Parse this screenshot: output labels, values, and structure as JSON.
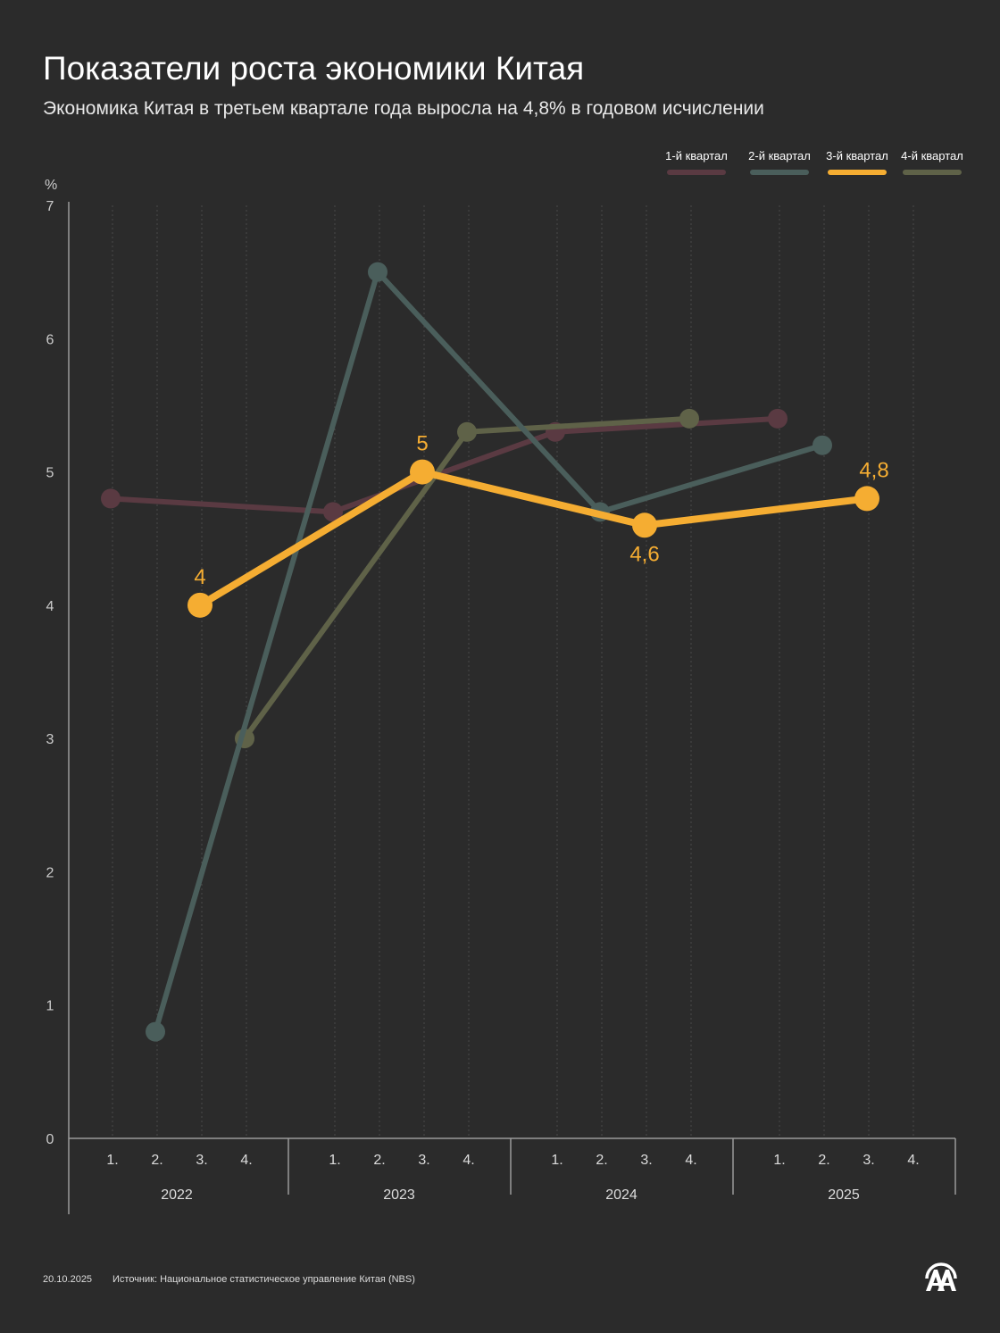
{
  "header": {
    "title": "Показатели роста экономики Китая",
    "subtitle": "Экономика Китая в третьем квартале года выросла на 4,8% в годовом исчислении"
  },
  "footer": {
    "date": "20.10.2025",
    "source": "Источник: Национальное статистическое управление Китая (NBS)",
    "logo": "AA"
  },
  "chart_data": {
    "type": "line",
    "ylabel": "%",
    "ylim": [
      0,
      7
    ],
    "yticks": [
      "0",
      "1",
      "2",
      "3",
      "4",
      "5",
      "6",
      "7"
    ],
    "years": [
      "2022",
      "2023",
      "2024",
      "2025"
    ],
    "quarter_labels": [
      "1.",
      "2.",
      "3.",
      "4."
    ],
    "grid": "vertical dotted",
    "legend_position": "top-right",
    "series": [
      {
        "name": "1-й квартал",
        "color": "#5a3a42",
        "values": [
          4.8,
          4.7,
          5.3,
          5.4
        ],
        "x_index": [
          0,
          4,
          8,
          12
        ],
        "labels": []
      },
      {
        "name": "2-й квартал",
        "color": "#4a5e5b",
        "values": [
          0.8,
          6.5,
          4.7,
          5.2
        ],
        "x_index": [
          1,
          5,
          9,
          13
        ],
        "labels": []
      },
      {
        "name": "3-й квартал",
        "color": "#f5ad32",
        "values": [
          4.0,
          5.0,
          4.6,
          4.8
        ],
        "x_index": [
          2,
          6,
          10,
          14
        ],
        "labels": [
          "4",
          "5",
          "4,6",
          "4,8"
        ]
      },
      {
        "name": "4-й квартал",
        "color": "#5f6248",
        "values": [
          3.0,
          5.3,
          5.4
        ],
        "x_index": [
          3,
          7,
          11
        ],
        "labels": []
      }
    ]
  }
}
